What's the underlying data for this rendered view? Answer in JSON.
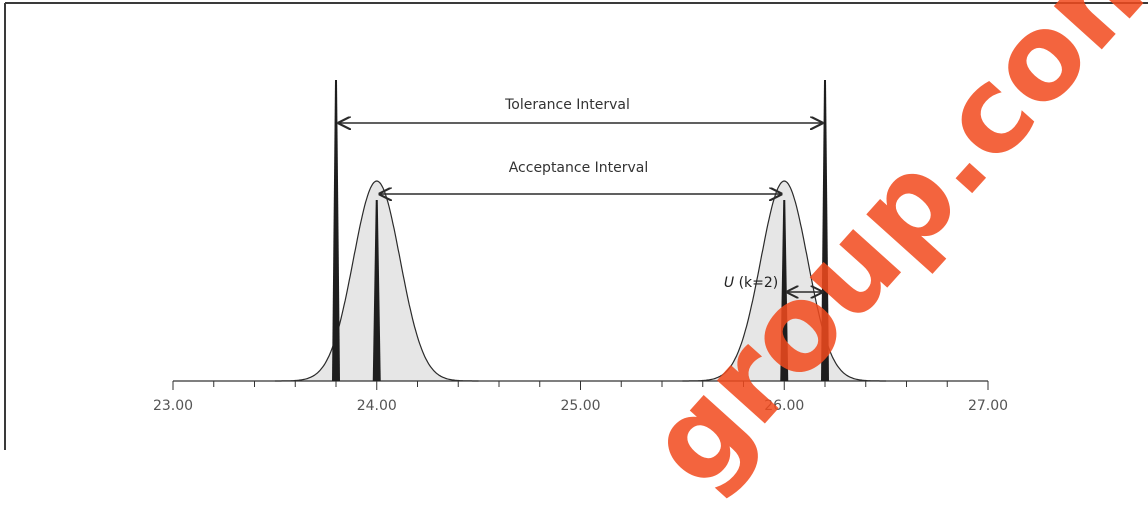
{
  "labels": {
    "tolerance": "Tolerance Interval",
    "acceptance": "Acceptance Interval",
    "uncertainty_u": "U",
    "uncertainty_k": " (k=2)"
  },
  "axis": {
    "min": 23.0,
    "max": 27.0,
    "minor_step": 0.2,
    "ticks": [
      {
        "value": 23.0,
        "label": "23.00"
      },
      {
        "value": 24.0,
        "label": "24.00"
      },
      {
        "value": 25.0,
        "label": "25.00"
      },
      {
        "value": 26.0,
        "label": "26.00"
      },
      {
        "value": 27.0,
        "label": "27.00"
      }
    ]
  },
  "intervals": {
    "tolerance": [
      23.8,
      26.2
    ],
    "acceptance": [
      24.0,
      26.0
    ]
  },
  "distributions": [
    {
      "mean": 24.0
    },
    {
      "mean": 26.0
    }
  ],
  "watermark": "group.com",
  "colors": {
    "curve_fill": "#e6e6e6",
    "line": "#2b2b2b",
    "watermark": "#f24a1d"
  }
}
